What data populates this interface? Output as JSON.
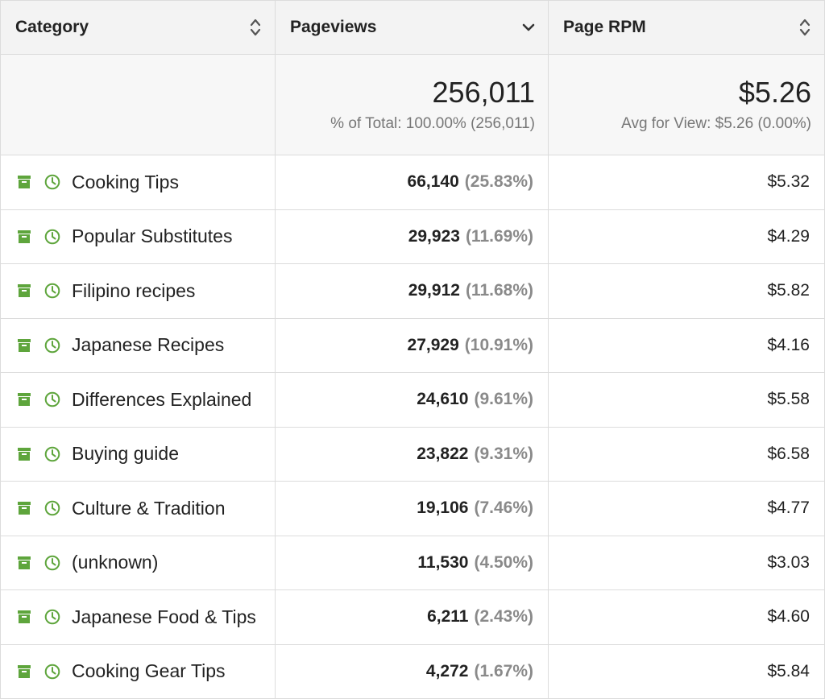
{
  "header": {
    "category": "Category",
    "pageviews": "Pageviews",
    "page_rpm": "Page RPM"
  },
  "summary": {
    "pageviews_total": "256,011",
    "pageviews_sub": "% of Total: 100.00% (256,011)",
    "rpm_total": "$5.26",
    "rpm_sub": "Avg for View: $5.26 (0.00%)"
  },
  "colors": {
    "accent_green": "#5ea53c",
    "header_bg": "#f3f3f3",
    "muted_text": "#8a8a8a"
  },
  "icons": {
    "archive": "archive-box-icon",
    "clock": "clock-icon",
    "sort": "sort-updown-icon",
    "sort_active": "chevron-down-icon"
  },
  "rows": [
    {
      "category": "Cooking Tips",
      "pageviews": "66,140",
      "pct": "(25.83%)",
      "rpm": "$5.32"
    },
    {
      "category": "Popular Substitutes",
      "pageviews": "29,923",
      "pct": "(11.69%)",
      "rpm": "$4.29"
    },
    {
      "category": "Filipino recipes",
      "pageviews": "29,912",
      "pct": "(11.68%)",
      "rpm": "$5.82"
    },
    {
      "category": "Japanese Recipes",
      "pageviews": "27,929",
      "pct": "(10.91%)",
      "rpm": "$4.16"
    },
    {
      "category": "Differences Explained",
      "pageviews": "24,610",
      "pct": "(9.61%)",
      "rpm": "$5.58"
    },
    {
      "category": "Buying guide",
      "pageviews": "23,822",
      "pct": "(9.31%)",
      "rpm": "$6.58"
    },
    {
      "category": "Culture & Tradition",
      "pageviews": "19,106",
      "pct": "(7.46%)",
      "rpm": "$4.77"
    },
    {
      "category": "(unknown)",
      "pageviews": "11,530",
      "pct": "(4.50%)",
      "rpm": "$3.03"
    },
    {
      "category": "Japanese Food & Tips",
      "pageviews": "6,211",
      "pct": "(2.43%)",
      "rpm": "$4.60"
    },
    {
      "category": "Cooking Gear Tips",
      "pageviews": "4,272",
      "pct": "(1.67%)",
      "rpm": "$5.84"
    }
  ]
}
